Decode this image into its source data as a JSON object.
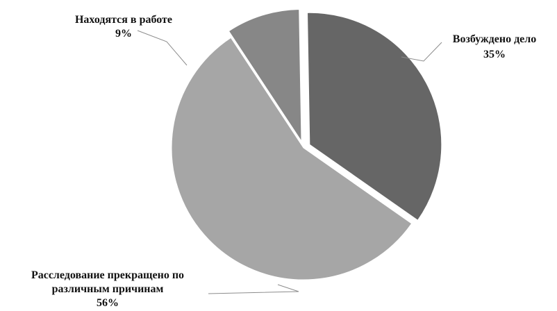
{
  "chart_data": {
    "type": "pie",
    "title": "",
    "legend": "none",
    "slices": [
      {
        "label_lines": [
          "Возбуждено дело"
        ],
        "value_label": "35%",
        "value": 35,
        "color": "#666666",
        "exploded": true
      },
      {
        "label_lines": [
          "Расследование прекращено по",
          "различным причинам"
        ],
        "value_label": "56%",
        "value": 56,
        "color": "#a6a6a6",
        "exploded": false
      },
      {
        "label_lines": [
          "Находятся в работе"
        ],
        "value_label": "9%",
        "value": 9,
        "color": "#878787",
        "exploded": true
      }
    ]
  }
}
